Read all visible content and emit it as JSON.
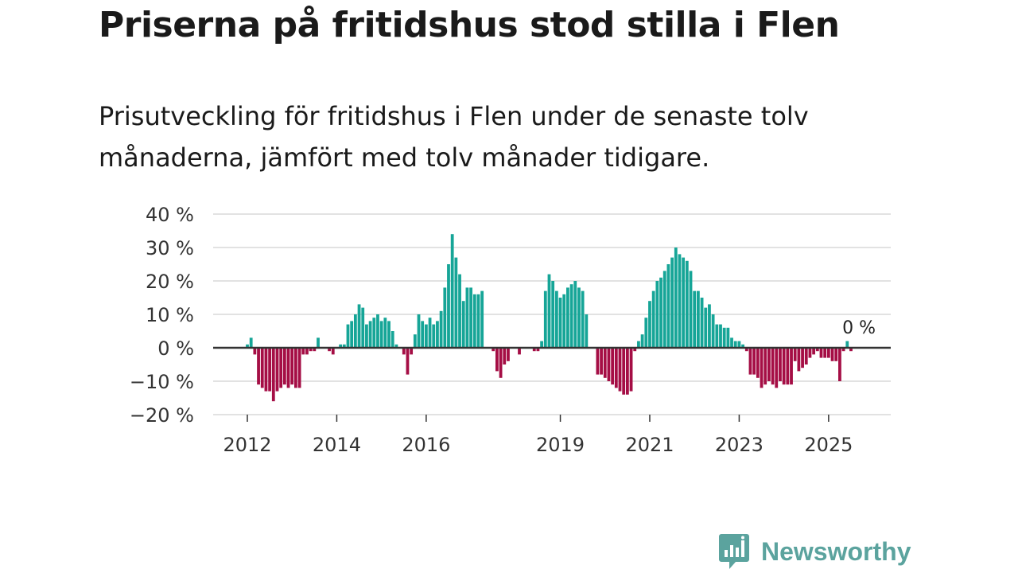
{
  "title": "Priserna på fritidshus stod stilla i Flen",
  "subtitle": "Prisutveckling för fritidshus i Flen under de senaste tolv månaderna, jämfört med tolv månader tidigare.",
  "brand": {
    "name": "Newsworthy",
    "color": "#5ba39e"
  },
  "colors": {
    "positive": "#16a597",
    "negative": "#a50e45",
    "grid": "#d9d9d9",
    "zero": "#333333"
  },
  "chart_data": {
    "type": "bar",
    "ylim": [
      -20,
      40
    ],
    "yticks": [
      40,
      30,
      20,
      10,
      0,
      -10,
      -20
    ],
    "ytick_labels": [
      "40 %",
      "30 %",
      "20 %",
      "10 %",
      "0 %",
      "−10 %",
      "−20 %"
    ],
    "xticks": [
      {
        "label": "2012",
        "index": 0
      },
      {
        "label": "2014",
        "index": 24
      },
      {
        "label": "2016",
        "index": 48
      },
      {
        "label": "2019",
        "index": 84
      },
      {
        "label": "2021",
        "index": 108
      },
      {
        "label": "2023",
        "index": 132
      },
      {
        "label": "2025",
        "index": 156
      }
    ],
    "start": "2012-01",
    "values": [
      1,
      3,
      -2,
      -11,
      -12,
      -13,
      -13,
      -16,
      -13,
      -12,
      -11,
      -12,
      -11,
      -12,
      -12,
      -2,
      -2,
      -1,
      -1,
      3,
      null,
      0,
      -1,
      -2,
      0,
      1,
      1,
      7,
      8,
      10,
      13,
      12,
      7,
      8,
      9,
      10,
      8,
      9,
      8,
      5,
      1,
      null,
      -2,
      -8,
      -2,
      4,
      10,
      8,
      7,
      9,
      7,
      8,
      11,
      18,
      25,
      34,
      27,
      22,
      14,
      18,
      18,
      16,
      16,
      17,
      null,
      null,
      -1,
      -7,
      -9,
      -5,
      -4,
      0,
      null,
      -2,
      null,
      null,
      null,
      -1,
      -1,
      2,
      17,
      22,
      20,
      17,
      15,
      16,
      18,
      19,
      20,
      18,
      17,
      10,
      null,
      null,
      -8,
      -8,
      -9,
      -10,
      -11,
      -12,
      -13,
      -14,
      -14,
      -13,
      -1,
      2,
      4,
      9,
      14,
      17,
      20,
      21,
      23,
      25,
      27,
      30,
      28,
      27,
      26,
      23,
      17,
      17,
      15,
      12,
      13,
      10,
      7,
      7,
      6,
      6,
      3,
      2,
      2,
      1,
      -1,
      -8,
      -8,
      -9,
      -12,
      -11,
      -10,
      -11,
      -12,
      -10,
      -11,
      -11,
      -11,
      -4,
      -7,
      -6,
      -5,
      -3,
      -2,
      -1,
      -3,
      -3,
      -3,
      -4,
      -4,
      -10,
      -1,
      2,
      -1
    ],
    "annotations": [
      {
        "label": "0 %",
        "index": 165,
        "value": 0
      }
    ]
  }
}
